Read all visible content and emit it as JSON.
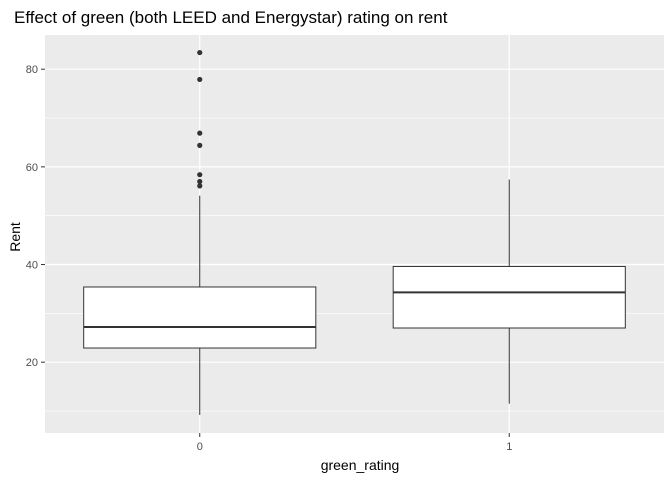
{
  "chart_data": {
    "type": "boxplot",
    "title": "Effect of green (both LEED and Energystar) rating on rent",
    "xlabel": "green_rating",
    "ylabel": "Rent",
    "categories": [
      "0",
      "1"
    ],
    "ylim": [
      5.5,
      87
    ],
    "y_ticks": [
      20,
      40,
      60,
      80
    ],
    "y_tick_labels": [
      "20",
      "40",
      "60",
      "80"
    ],
    "grid": true,
    "boxes": [
      {
        "category": "0",
        "whisker_low": 9.2,
        "q1": 22.9,
        "median": 27.2,
        "q3": 35.4,
        "whisker_high": 54.1,
        "outliers": [
          56.1,
          57.0,
          58.4,
          64.4,
          66.9,
          77.9,
          83.4
        ]
      },
      {
        "category": "1",
        "whisker_low": 11.5,
        "q1": 27.0,
        "median": 34.3,
        "q3": 39.6,
        "whisker_high": 57.4,
        "outliers": []
      }
    ],
    "colors": {
      "panel_background": "#ebebeb",
      "grid_major": "#ffffff",
      "box_fill": "#ffffff",
      "box_line": "#333333",
      "outlier": "#333333",
      "tick_label": "#4d4d4d"
    }
  }
}
